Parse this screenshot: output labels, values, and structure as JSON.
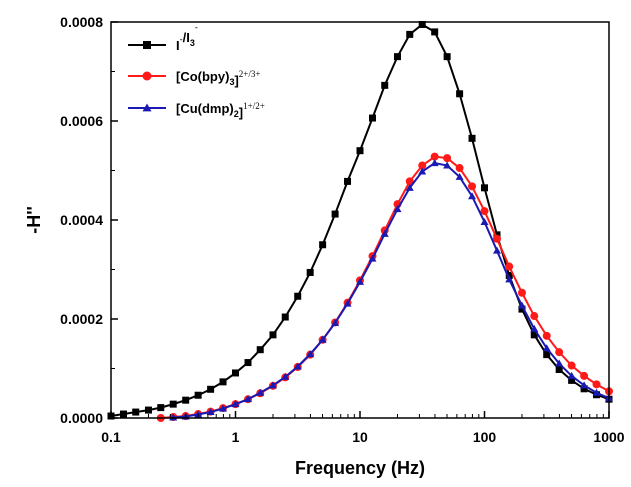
{
  "chart_data": {
    "type": "line",
    "xlabel": "Frequency (Hz)",
    "ylabel": "-H''",
    "x_scale": "log",
    "xlim": [
      0.1,
      1000
    ],
    "ylim": [
      0,
      0.0008
    ],
    "x_ticks": [
      0.1,
      1,
      10,
      100,
      1000
    ],
    "x_tick_labels": [
      "0.1",
      "1",
      "10",
      "100",
      "1000"
    ],
    "y_ticks": [
      0,
      0.0002,
      0.0004,
      0.0006,
      0.0008
    ],
    "y_tick_labels": [
      "0.0000",
      "0.0002",
      "0.0004",
      "0.0006",
      "0.0008"
    ],
    "grid": false,
    "legend_position": "top-left",
    "series": [
      {
        "legend_parts": [
          {
            "t": "I",
            "s": "n"
          },
          {
            "t": "-",
            "s": "sup"
          },
          {
            "t": "/I",
            "s": "n"
          },
          {
            "t": "3",
            "s": "sub"
          },
          {
            "t": "-",
            "s": "sup2"
          }
        ],
        "color": "#000000",
        "marker": "square",
        "points": [
          [
            0.1,
            4e-06
          ],
          [
            0.126,
            8e-06
          ],
          [
            0.158,
            1.2e-05
          ],
          [
            0.2,
            1.6e-05
          ],
          [
            0.251,
            2.1e-05
          ],
          [
            0.316,
            2.8e-05
          ],
          [
            0.398,
            3.6e-05
          ],
          [
            0.501,
            4.6e-05
          ],
          [
            0.631,
            5.8e-05
          ],
          [
            0.794,
            7.3e-05
          ],
          [
            1.0,
            9.1e-05
          ],
          [
            1.26,
            0.000112
          ],
          [
            1.58,
            0.000138
          ],
          [
            2.0,
            0.000168
          ],
          [
            2.51,
            0.000204
          ],
          [
            3.16,
            0.000246
          ],
          [
            3.98,
            0.000294
          ],
          [
            5.01,
            0.00035
          ],
          [
            6.31,
            0.000412
          ],
          [
            7.94,
            0.000478
          ],
          [
            10.0,
            0.00054
          ],
          [
            12.6,
            0.000606
          ],
          [
            15.8,
            0.000672
          ],
          [
            20.0,
            0.00073
          ],
          [
            25.1,
            0.000775
          ],
          [
            31.6,
            0.000795
          ],
          [
            39.8,
            0.00078
          ],
          [
            50.1,
            0.00073
          ],
          [
            63.1,
            0.000655
          ],
          [
            79.4,
            0.000565
          ],
          [
            100,
            0.000465
          ],
          [
            126,
            0.00037
          ],
          [
            158,
            0.000288
          ],
          [
            200,
            0.00022
          ],
          [
            251,
            0.000168
          ],
          [
            316,
            0.000128
          ],
          [
            398,
            9.8e-05
          ],
          [
            501,
            7.6e-05
          ],
          [
            631,
            5.9e-05
          ],
          [
            794,
            4.7e-05
          ],
          [
            1000,
            3.8e-05
          ]
        ]
      },
      {
        "legend_parts": [
          {
            "t": "[Co(bpy)",
            "s": "n"
          },
          {
            "t": "3",
            "s": "sub"
          },
          {
            "t": "]",
            "s": "n"
          },
          {
            "t": "2+/3+",
            "s": "sup"
          }
        ],
        "color": "#ff1a1a",
        "marker": "circle",
        "points": [
          [
            0.251,
            0.0
          ],
          [
            0.316,
            2e-06
          ],
          [
            0.398,
            4e-06
          ],
          [
            0.501,
            8e-06
          ],
          [
            0.631,
            1.3e-05
          ],
          [
            0.794,
            2e-05
          ],
          [
            1.0,
            2.8e-05
          ],
          [
            1.26,
            3.8e-05
          ],
          [
            1.58,
            5e-05
          ],
          [
            2.0,
            6.5e-05
          ],
          [
            2.51,
            8.2e-05
          ],
          [
            3.16,
            0.000103
          ],
          [
            3.98,
            0.000128
          ],
          [
            5.01,
            0.000158
          ],
          [
            6.31,
            0.000193
          ],
          [
            7.94,
            0.000233
          ],
          [
            10.0,
            0.000278
          ],
          [
            12.6,
            0.000327
          ],
          [
            15.8,
            0.000379
          ],
          [
            20.0,
            0.000432
          ],
          [
            25.1,
            0.000478
          ],
          [
            31.6,
            0.00051
          ],
          [
            39.8,
            0.000528
          ],
          [
            50.1,
            0.000525
          ],
          [
            63.1,
            0.000505
          ],
          [
            79.4,
            0.000468
          ],
          [
            100,
            0.000418
          ],
          [
            126,
            0.000362
          ],
          [
            158,
            0.000306
          ],
          [
            200,
            0.000253
          ],
          [
            251,
            0.000206
          ],
          [
            316,
            0.000166
          ],
          [
            398,
            0.000133
          ],
          [
            501,
            0.000106
          ],
          [
            631,
            8.5e-05
          ],
          [
            794,
            6.8e-05
          ],
          [
            1000,
            5.4e-05
          ]
        ]
      },
      {
        "legend_parts": [
          {
            "t": "[Cu(dmp)",
            "s": "n"
          },
          {
            "t": "2",
            "s": "sub"
          },
          {
            "t": "]",
            "s": "n"
          },
          {
            "t": "1+/2+",
            "s": "sup"
          }
        ],
        "color": "#1a1ab3",
        "marker": "triangle",
        "points": [
          [
            0.316,
            1e-06
          ],
          [
            0.398,
            3e-06
          ],
          [
            0.501,
            7e-06
          ],
          [
            0.631,
            1.2e-05
          ],
          [
            0.794,
            1.9e-05
          ],
          [
            1.0,
            2.8e-05
          ],
          [
            1.26,
            3.8e-05
          ],
          [
            1.58,
            5.1e-05
          ],
          [
            2.0,
            6.6e-05
          ],
          [
            2.51,
            8.3e-05
          ],
          [
            3.16,
            0.000104
          ],
          [
            3.98,
            0.000129
          ],
          [
            5.01,
            0.000158
          ],
          [
            6.31,
            0.000192
          ],
          [
            7.94,
            0.000231
          ],
          [
            10.0,
            0.000275
          ],
          [
            12.6,
            0.000322
          ],
          [
            15.8,
            0.000372
          ],
          [
            20.0,
            0.000422
          ],
          [
            25.1,
            0.000465
          ],
          [
            31.6,
            0.000498
          ],
          [
            39.8,
            0.000515
          ],
          [
            50.1,
            0.00051
          ],
          [
            63.1,
            0.000487
          ],
          [
            79.4,
            0.000448
          ],
          [
            100,
            0.000396
          ],
          [
            126,
            0.000338
          ],
          [
            158,
            0.00028
          ],
          [
            200,
            0.000227
          ],
          [
            251,
            0.00018
          ],
          [
            316,
            0.000141
          ],
          [
            398,
            0.00011
          ],
          [
            501,
            8.5e-05
          ],
          [
            631,
            6.6e-05
          ],
          [
            794,
            5.1e-05
          ],
          [
            1000,
            4e-05
          ]
        ]
      }
    ]
  }
}
